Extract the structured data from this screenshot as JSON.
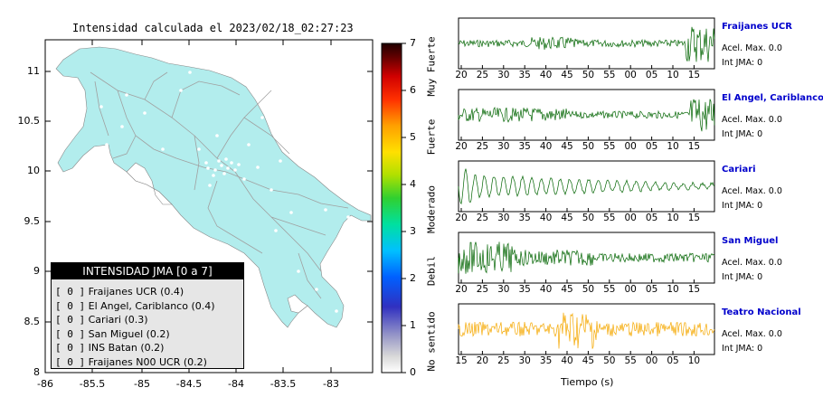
{
  "title": "Intensidad calculada el 2023/02/18_02:27:23",
  "map": {
    "x_ticks": [
      "-86",
      "-85.5",
      "-85",
      "-84.5",
      "-84",
      "-83.5",
      "-83"
    ],
    "y_ticks": [
      "11",
      "10.5",
      "10",
      "9.5",
      "9",
      "8.5",
      "8"
    ],
    "land_color": "#b2eded",
    "road_color": "#a0a0a0"
  },
  "legend": {
    "header": "INTENSIDAD JMA [0 a 7]",
    "items": [
      {
        "level": "[ 0 ]",
        "label": "Fraijanes UCR (0.4)"
      },
      {
        "level": "[ 0 ]",
        "label": "El Angel, Cariblanco (0.4)"
      },
      {
        "level": "[ 0 ]",
        "label": "Cariari (0.3)"
      },
      {
        "level": "[ 0 ]",
        "label": "San Miguel (0.2)"
      },
      {
        "level": "[ 0 ]",
        "label": "INS Batan (0.2)"
      },
      {
        "level": "[ 0 ]",
        "label": "Fraijanes N00 UCR (0.2)"
      }
    ]
  },
  "scale": {
    "numbers": [
      "7",
      "6",
      "5",
      "4",
      "3",
      "2",
      "1",
      "0"
    ],
    "categories": [
      "Muy Fuerte",
      "Fuerte",
      "Moderado",
      "Debil",
      "No sentido"
    ]
  },
  "panels": [
    {
      "name": "Fraijanes UCR",
      "accel": "Acel. Max. 0.0",
      "jma": "Int JMA: 0",
      "color": "#006400",
      "ticks": [
        "20",
        "25",
        "30",
        "35",
        "40",
        "45",
        "50",
        "55",
        "00",
        "05",
        "10",
        "15"
      ]
    },
    {
      "name": "El Angel, Cariblanco",
      "accel": "Acel. Max. 0.0",
      "jma": "Int JMA: 0",
      "color": "#006400",
      "ticks": [
        "20",
        "25",
        "30",
        "35",
        "40",
        "45",
        "50",
        "55",
        "00",
        "05",
        "10",
        "15"
      ]
    },
    {
      "name": "Cariari",
      "accel": "Acel. Max. 0.0",
      "jma": "Int JMA: 0",
      "color": "#006400",
      "ticks": [
        "20",
        "25",
        "30",
        "35",
        "40",
        "45",
        "50",
        "55",
        "00",
        "05",
        "10",
        "15"
      ]
    },
    {
      "name": "San Miguel",
      "accel": "Acel. Max. 0.0",
      "jma": "Int JMA: 0",
      "color": "#006400",
      "ticks": [
        "20",
        "25",
        "30",
        "35",
        "40",
        "45",
        "50",
        "55",
        "00",
        "05",
        "10",
        "15"
      ]
    },
    {
      "name": "Teatro Nacional",
      "accel": "Acel. Max. 0.0",
      "jma": "Int JMA: 0",
      "color": "#f5a800",
      "ticks": [
        "15",
        "20",
        "25",
        "30",
        "35",
        "40",
        "45",
        "50",
        "55",
        "00",
        "05",
        "10"
      ]
    }
  ],
  "xaxis_label": "Tiempo (s)"
}
